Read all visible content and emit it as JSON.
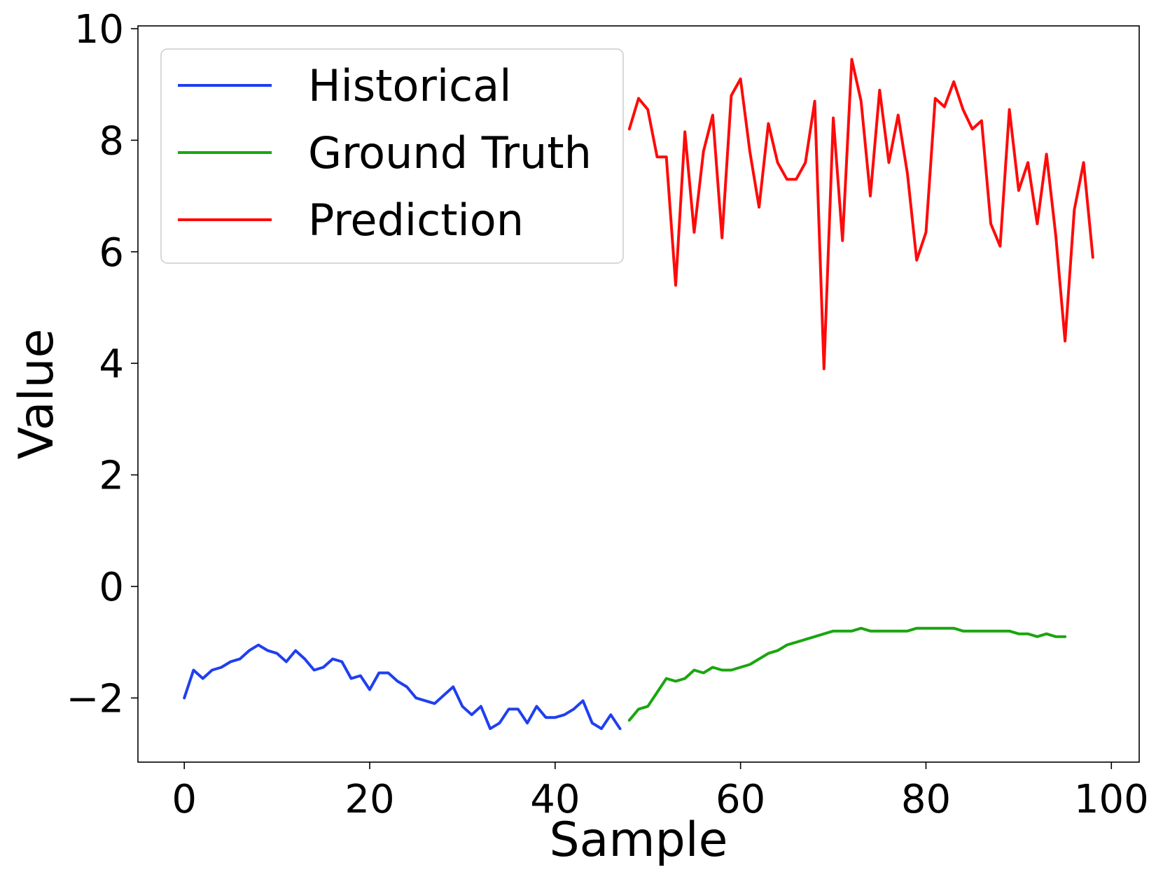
{
  "chart_data": {
    "type": "line",
    "title": "",
    "xlabel": "Sample",
    "ylabel": "Value",
    "xlim": [
      -5,
      103
    ],
    "ylim": [
      -3.15,
      10.05
    ],
    "xticks": [
      0,
      20,
      40,
      60,
      80,
      100
    ],
    "xtick_labels": [
      "0",
      "20",
      "40",
      "60",
      "80",
      "100"
    ],
    "yticks": [
      -2,
      0,
      2,
      4,
      6,
      8,
      10
    ],
    "ytick_labels": [
      "−2",
      "0",
      "2",
      "4",
      "6",
      "8",
      "10"
    ],
    "grid": false,
    "legend": {
      "position": "top-left"
    },
    "series": [
      {
        "name": "Historical",
        "color": "#1f3ff0",
        "x": [
          0,
          1,
          2,
          3,
          4,
          5,
          6,
          7,
          8,
          9,
          10,
          11,
          12,
          13,
          14,
          15,
          16,
          17,
          18,
          19,
          20,
          21,
          22,
          23,
          24,
          25,
          26,
          27,
          28,
          29,
          30,
          31,
          32,
          33,
          34,
          35,
          36,
          37,
          38,
          39,
          40,
          41,
          42,
          43,
          44,
          45,
          46,
          47
        ],
        "y": [
          -2.0,
          -1.5,
          -1.65,
          -1.5,
          -1.45,
          -1.35,
          -1.3,
          -1.15,
          -1.05,
          -1.15,
          -1.2,
          -1.35,
          -1.15,
          -1.3,
          -1.5,
          -1.45,
          -1.3,
          -1.35,
          -1.65,
          -1.6,
          -1.85,
          -1.55,
          -1.55,
          -1.7,
          -1.8,
          -2.0,
          -2.05,
          -2.1,
          -1.95,
          -1.8,
          -2.15,
          -2.3,
          -2.15,
          -2.55,
          -2.45,
          -2.2,
          -2.2,
          -2.45,
          -2.15,
          -2.35,
          -2.35,
          -2.3,
          -2.2,
          -2.05,
          -2.45,
          -2.55,
          -2.3,
          -2.55
        ]
      },
      {
        "name": "Ground Truth",
        "color": "#1aa60f",
        "x": [
          48,
          49,
          50,
          51,
          52,
          53,
          54,
          55,
          56,
          57,
          58,
          59,
          60,
          61,
          62,
          63,
          64,
          65,
          66,
          67,
          68,
          69,
          70,
          71,
          72,
          73,
          74,
          75,
          76,
          77,
          78,
          79,
          80,
          81,
          82,
          83,
          84,
          85,
          86,
          87,
          88,
          89,
          90,
          91,
          92,
          93,
          94,
          95
        ],
        "y": [
          -2.4,
          -2.2,
          -2.15,
          -1.9,
          -1.65,
          -1.7,
          -1.65,
          -1.5,
          -1.55,
          -1.45,
          -1.5,
          -1.5,
          -1.45,
          -1.4,
          -1.3,
          -1.2,
          -1.15,
          -1.05,
          -1.0,
          -0.95,
          -0.9,
          -0.85,
          -0.8,
          -0.8,
          -0.8,
          -0.75,
          -0.8,
          -0.8,
          -0.8,
          -0.8,
          -0.8,
          -0.75,
          -0.75,
          -0.75,
          -0.75,
          -0.75,
          -0.8,
          -0.8,
          -0.8,
          -0.8,
          -0.8,
          -0.8,
          -0.85,
          -0.85,
          -0.9,
          -0.85,
          -0.9,
          -0.9
        ]
      },
      {
        "name": "Prediction",
        "color": "#ff0a0a",
        "x": [
          48,
          49,
          50,
          51,
          52,
          53,
          54,
          55,
          56,
          57,
          58,
          59,
          60,
          61,
          62,
          63,
          64,
          65,
          66,
          67,
          68,
          69,
          70,
          71,
          72,
          73,
          74,
          75,
          76,
          77,
          78,
          79,
          80,
          81,
          82,
          83,
          84,
          85,
          86,
          87,
          88,
          89,
          90,
          91,
          92,
          93,
          94,
          95,
          96,
          97,
          98
        ],
        "y": [
          8.2,
          8.75,
          8.55,
          7.7,
          7.7,
          5.4,
          8.15,
          6.35,
          7.8,
          8.45,
          6.25,
          8.8,
          9.1,
          7.8,
          6.8,
          8.3,
          7.6,
          7.3,
          7.3,
          7.6,
          8.7,
          3.9,
          8.4,
          6.2,
          9.45,
          8.7,
          7.0,
          8.9,
          7.6,
          8.45,
          7.4,
          5.85,
          6.35,
          8.75,
          8.6,
          9.05,
          8.55,
          8.2,
          8.35,
          6.5,
          6.1,
          8.55,
          7.1,
          7.6,
          6.5,
          7.75,
          6.3,
          4.4,
          6.75,
          7.6,
          5.9
        ]
      }
    ]
  }
}
